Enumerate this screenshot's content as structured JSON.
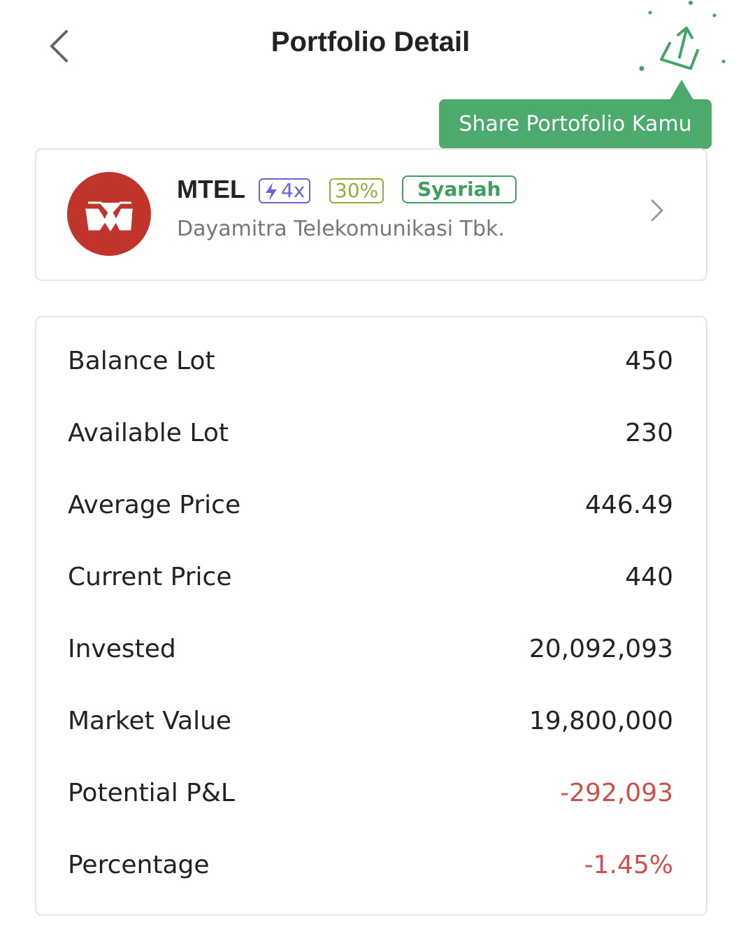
{
  "header": {
    "title": "Portfolio Detail",
    "tooltip": "Share Portofolio Kamu"
  },
  "stock": {
    "ticker": "MTEL",
    "badges": [
      "4x",
      "30%",
      "Syariah"
    ],
    "name": "Dayamitra Telekomunikasi Tbk."
  },
  "details": {
    "rows": [
      {
        "label": "Balance Lot",
        "value": "450"
      },
      {
        "label": "Available Lot",
        "value": "230"
      },
      {
        "label": "Average Price",
        "value": "446.49"
      },
      {
        "label": "Current Price",
        "value": "440"
      },
      {
        "label": "Invested",
        "value": "20,092,093"
      },
      {
        "label": "Market Value",
        "value": "19,800,000"
      },
      {
        "label": "Potential P&L",
        "value": "-292,093",
        "color": "#cf4f4a"
      },
      {
        "label": "Percentage",
        "value": "-1.45%",
        "color": "#cf4f4a"
      }
    ]
  }
}
